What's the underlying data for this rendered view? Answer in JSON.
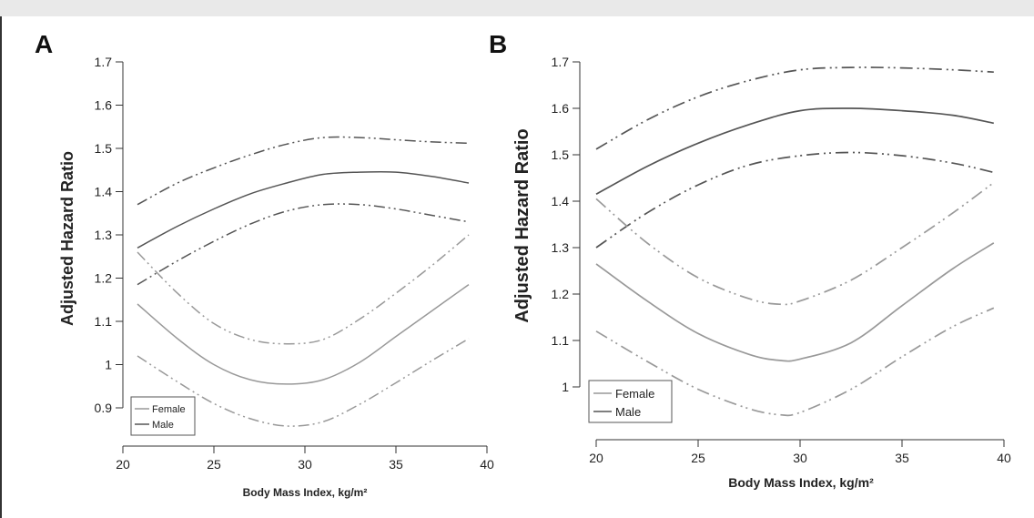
{
  "chart_data": [
    {
      "type": "line",
      "panel_label": "A",
      "xlabel": "Body Mass Index, kg/m²",
      "ylabel": "Adjusted Hazard Ratio",
      "xlim": [
        20,
        40
      ],
      "ylim": [
        0.85,
        1.7
      ],
      "x_ticks": [
        20,
        25,
        30,
        35,
        40
      ],
      "y_ticks": [
        0.9,
        1,
        1.1,
        1.2,
        1.3,
        1.4,
        1.5,
        1.6,
        1.7
      ],
      "grid": false,
      "legend_position": "bottom-left",
      "legend": [
        "Female",
        "Male"
      ],
      "series": [
        {
          "group": "male",
          "style": "solid",
          "color": "#555555",
          "x": [
            20.8,
            23,
            25,
            27,
            29,
            31,
            33,
            35,
            37,
            39
          ],
          "y": [
            1.27,
            1.32,
            1.36,
            1.395,
            1.42,
            1.44,
            1.445,
            1.445,
            1.435,
            1.42
          ]
        },
        {
          "group": "male",
          "style": "dashdot",
          "color": "#555555",
          "x": [
            20.8,
            23,
            25,
            27,
            29,
            31,
            33,
            35,
            37,
            39
          ],
          "y": [
            1.37,
            1.42,
            1.455,
            1.485,
            1.51,
            1.525,
            1.525,
            1.52,
            1.515,
            1.512
          ]
        },
        {
          "group": "male",
          "style": "dashdot",
          "color": "#555555",
          "x": [
            20.8,
            23,
            25,
            27,
            29,
            31,
            33,
            35,
            37,
            39
          ],
          "y": [
            1.185,
            1.24,
            1.285,
            1.325,
            1.355,
            1.37,
            1.37,
            1.36,
            1.345,
            1.33
          ]
        },
        {
          "group": "female",
          "style": "solid",
          "color": "#999999",
          "x": [
            20.8,
            23,
            25,
            27,
            29,
            31,
            33,
            35,
            37,
            39
          ],
          "y": [
            1.14,
            1.06,
            1.0,
            0.965,
            0.955,
            0.965,
            1.005,
            1.065,
            1.125,
            1.185
          ]
        },
        {
          "group": "female",
          "style": "dashdot",
          "color": "#999999",
          "x": [
            20.8,
            23,
            25,
            27,
            29,
            31,
            33,
            35,
            37,
            39
          ],
          "y": [
            1.26,
            1.165,
            1.095,
            1.058,
            1.048,
            1.058,
            1.105,
            1.165,
            1.23,
            1.3
          ]
        },
        {
          "group": "female",
          "style": "dashdot",
          "color": "#999999",
          "x": [
            20.8,
            23,
            25,
            27,
            29,
            31,
            33,
            35,
            37,
            39
          ],
          "y": [
            1.02,
            0.96,
            0.91,
            0.875,
            0.858,
            0.868,
            0.908,
            0.958,
            1.01,
            1.06
          ]
        }
      ]
    },
    {
      "type": "line",
      "panel_label": "B",
      "xlabel": "Body Mass Index, kg/m²",
      "ylabel": "Adjusted Hazard Ratio",
      "xlim": [
        20,
        40
      ],
      "ylim": [
        0.9,
        1.7
      ],
      "x_ticks": [
        20,
        25,
        30,
        35,
        40
      ],
      "y_ticks": [
        1,
        1.1,
        1.2,
        1.3,
        1.4,
        1.5,
        1.6,
        1.7
      ],
      "grid": false,
      "legend_position": "bottom-left",
      "legend": [
        "Female",
        "Male"
      ],
      "series": [
        {
          "group": "male",
          "style": "solid",
          "color": "#555555",
          "x": [
            20,
            22.5,
            25,
            27.5,
            30,
            32.5,
            35,
            37.5,
            39.5
          ],
          "y": [
            1.415,
            1.475,
            1.525,
            1.565,
            1.595,
            1.6,
            1.595,
            1.585,
            1.568
          ]
        },
        {
          "group": "male",
          "style": "dashdot",
          "color": "#555555",
          "x": [
            20,
            22.5,
            25,
            27.5,
            30,
            32.5,
            35,
            37.5,
            39.5
          ],
          "y": [
            1.512,
            1.575,
            1.625,
            1.66,
            1.683,
            1.688,
            1.687,
            1.683,
            1.678
          ]
        },
        {
          "group": "male",
          "style": "dashdot",
          "color": "#555555",
          "x": [
            20,
            22.5,
            25,
            27.5,
            30,
            32.5,
            35,
            37.5,
            39.5
          ],
          "y": [
            1.3,
            1.375,
            1.435,
            1.478,
            1.498,
            1.505,
            1.498,
            1.482,
            1.462
          ]
        },
        {
          "group": "female",
          "style": "solid",
          "color": "#999999",
          "x": [
            20,
            22.5,
            25,
            27.5,
            29,
            30,
            32.5,
            35,
            37.5,
            39.5
          ],
          "y": [
            1.265,
            1.185,
            1.115,
            1.07,
            1.057,
            1.06,
            1.095,
            1.175,
            1.255,
            1.31
          ]
        },
        {
          "group": "female",
          "style": "dashdot",
          "color": "#999999",
          "x": [
            20,
            22.5,
            25,
            27.5,
            29,
            30,
            32.5,
            35,
            37.5,
            39.5
          ],
          "y": [
            1.405,
            1.31,
            1.235,
            1.19,
            1.178,
            1.185,
            1.23,
            1.3,
            1.375,
            1.44
          ]
        },
        {
          "group": "female",
          "style": "dashdot",
          "color": "#999999",
          "x": [
            20,
            22.5,
            25,
            27.5,
            29,
            30,
            32.5,
            35,
            37.5,
            39.5
          ],
          "y": [
            1.12,
            1.055,
            0.995,
            0.953,
            0.94,
            0.945,
            0.995,
            1.065,
            1.13,
            1.17
          ]
        }
      ]
    }
  ]
}
